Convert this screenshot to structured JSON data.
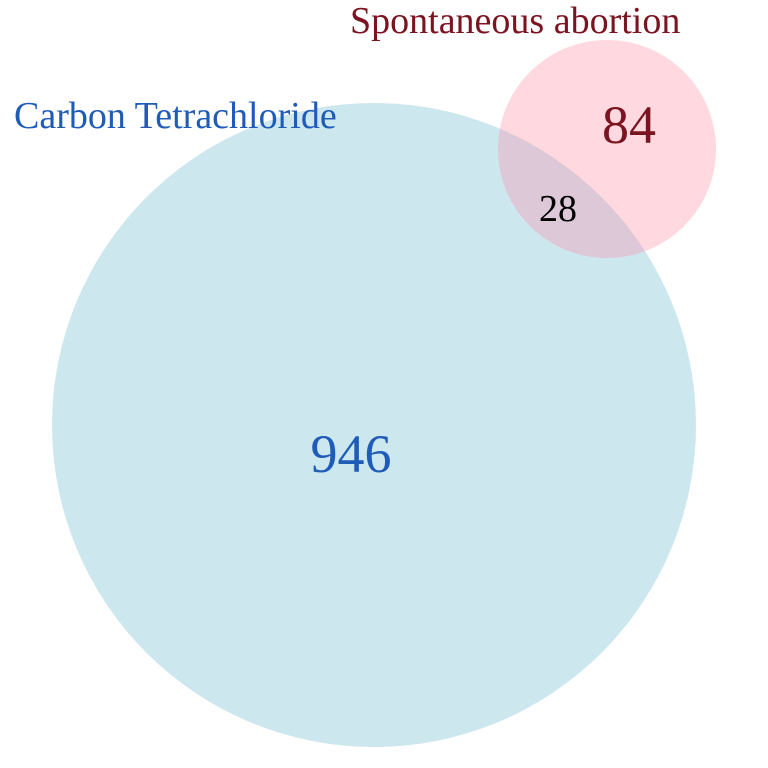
{
  "chart_data": {
    "type": "venn",
    "sets": [
      {
        "name": "Carbon Tetrachloride",
        "only_count": "946",
        "fill_color": "#cde7ef",
        "label_color": "#1f5cb8"
      },
      {
        "name": "Spontaneous abortion",
        "only_count": "84",
        "fill_color": "#ffd9df",
        "label_color": "#7a1420"
      }
    ],
    "intersection": {
      "count": "28",
      "fill_color": "#dcc8d7",
      "label_color": "#000000"
    }
  }
}
